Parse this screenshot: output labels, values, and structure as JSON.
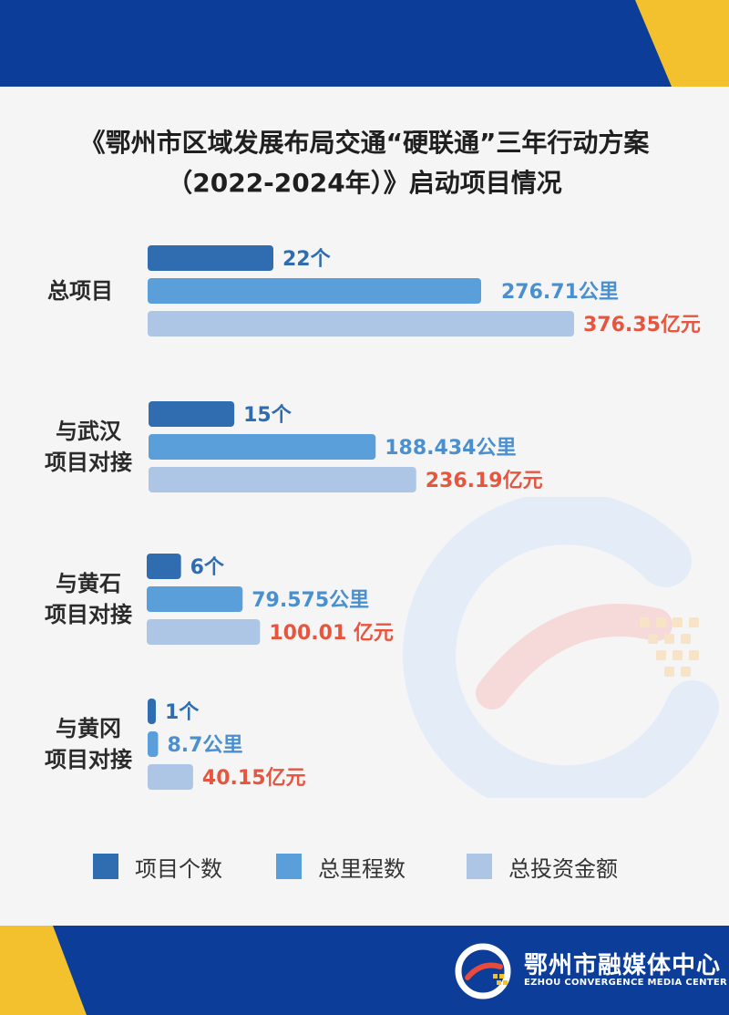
{
  "title": {
    "line1": "《鄂州市区域发展布局交通“硬联通”三年行动方案",
    "line2": "（2022-2024年）》启动项目情况"
  },
  "colors": {
    "band": "#0b3d99",
    "accent": "#f3c12e",
    "series": [
      "#2f6db0",
      "#5a9fda",
      "#aec6e6"
    ],
    "value_red": "#e8553f",
    "value_blue": "#4a8fcf"
  },
  "chart_data": {
    "type": "bar",
    "orientation": "horizontal",
    "categories": [
      "总项目",
      "与武汉项目对接",
      "与黄石项目对接",
      "与黄冈项目对接"
    ],
    "category_lines": [
      [
        "总项目"
      ],
      [
        "与武汉",
        "项目对接"
      ],
      [
        "与黄石",
        "项目对接"
      ],
      [
        "与黄冈",
        "项目对接"
      ]
    ],
    "series": [
      {
        "name": "项目个数",
        "values": [
          22,
          15,
          6,
          1
        ],
        "labels": [
          "22个",
          "15个",
          "6个",
          "1个"
        ]
      },
      {
        "name": "总里程数",
        "values": [
          276.71,
          188.434,
          79.575,
          8.7
        ],
        "labels": [
          "276.71公里",
          "188.434公里",
          "79.575公里",
          "8.7公里"
        ]
      },
      {
        "name": "总投资金额",
        "values": [
          376.35,
          236.19,
          100.01,
          40.15
        ],
        "labels": [
          "376.35亿元",
          "236.19亿元",
          "100.01 亿元",
          "40.15亿元"
        ]
      }
    ],
    "legend_position": "bottom",
    "grid": false
  },
  "brand": {
    "name_cn": "鄂州市融媒体中心",
    "name_en": "EZHOU CONVERGENCE MEDIA CENTER"
  }
}
